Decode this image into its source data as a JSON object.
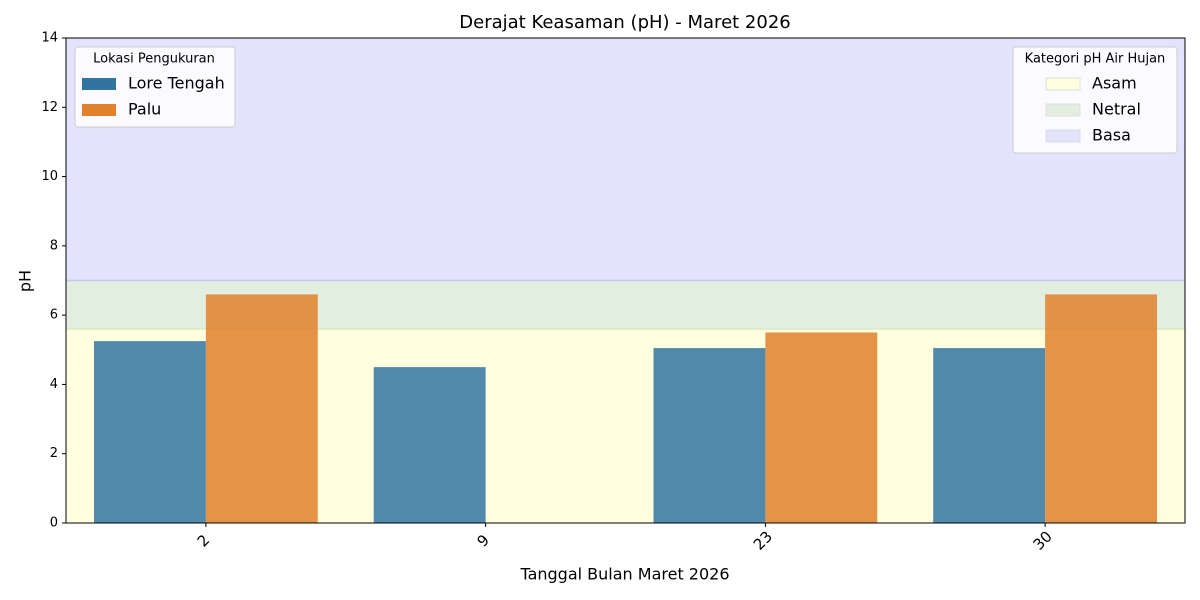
{
  "chart_data": {
    "type": "bar",
    "title": "Derajat Keasaman (pH) - Maret 2026",
    "xlabel": "Tanggal Bulan Maret 2026",
    "ylabel": "pH",
    "categories": [
      "2",
      "9",
      "23",
      "30"
    ],
    "series": [
      {
        "name": "Lore Tengah",
        "color": "#3274a1",
        "values": [
          5.25,
          4.5,
          5.05,
          5.05
        ]
      },
      {
        "name": "Palu",
        "color": "#e1812c",
        "values": [
          6.6,
          null,
          5.5,
          6.6
        ]
      }
    ],
    "legend_title": "Lokasi Pengukuran",
    "legend_position": "upper left",
    "bands": [
      {
        "name": "Asam",
        "from": 0,
        "to": 5.6,
        "color": "#ffffe0"
      },
      {
        "name": "Netral",
        "from": 5.6,
        "to": 7,
        "color": "#e2efe0"
      },
      {
        "name": "Basa",
        "from": 7,
        "to": 14,
        "color": "#e3e3fd"
      }
    ],
    "band_legend_title": "Kategori pH Air Hujan",
    "band_legend_position": "upper right",
    "ylim": [
      0,
      14
    ],
    "yticks": [
      0,
      2,
      4,
      6,
      8,
      10,
      12,
      14
    ]
  }
}
